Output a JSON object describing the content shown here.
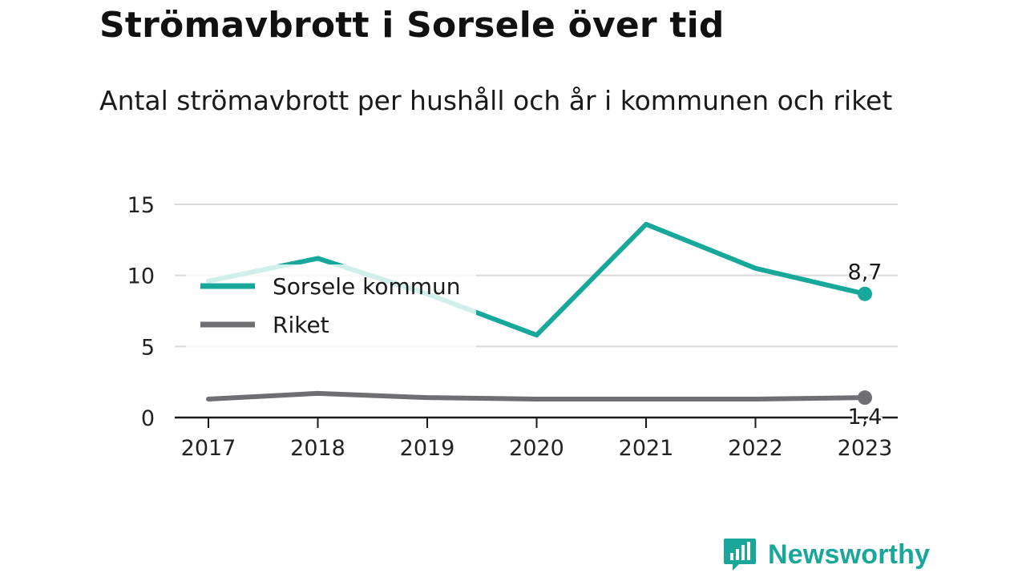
{
  "header": {
    "title": "Strömavbrott i Sorsele över tid",
    "subtitle": "Antal strömavbrott per hushåll och år i kommunen och riket"
  },
  "branding": {
    "name": "Newsworthy",
    "icon": "newsworthy-logo-icon"
  },
  "colors": {
    "sorsele": "#17a89b",
    "riket": "#6e6e73",
    "grid": "#d9d9d9",
    "axis": "#1a1a1a"
  },
  "chart_data": {
    "type": "line",
    "title": "Strömavbrott i Sorsele över tid",
    "subtitle": "Antal strömavbrott per hushåll och år i kommunen och riket",
    "xlabel": "",
    "ylabel": "",
    "categories": [
      "2017",
      "2018",
      "2019",
      "2020",
      "2021",
      "2022",
      "2023"
    ],
    "yticks": [
      "0",
      "5",
      "10",
      "15"
    ],
    "ylim": [
      0,
      15
    ],
    "grid": true,
    "legend_position": "top-left",
    "series": [
      {
        "name": "Sorsele kommun",
        "color": "#17a89b",
        "values": [
          9.6,
          11.2,
          8.7,
          5.8,
          13.6,
          10.5,
          8.7
        ],
        "end_label": "8,7"
      },
      {
        "name": "Riket",
        "color": "#6e6e73",
        "values": [
          1.3,
          1.7,
          1.4,
          1.3,
          1.3,
          1.3,
          1.4
        ],
        "end_label": "1,4"
      }
    ]
  }
}
